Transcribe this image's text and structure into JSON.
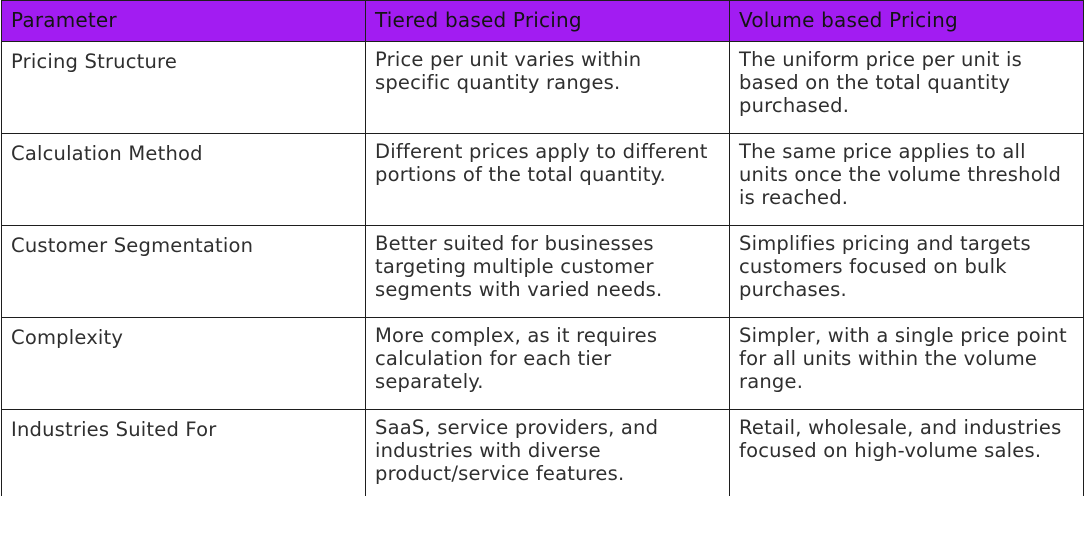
{
  "table": {
    "headers": [
      "Parameter",
      "Tiered based Pricing",
      "Volume based Pricing"
    ],
    "rows": [
      [
        "Pricing Structure",
        "Price per unit varies within specific quantity ranges.",
        "The uniform price per unit is based on the total quantity purchased."
      ],
      [
        "Calculation Method",
        "Different prices apply to different portions of the total quantity.",
        "The same price applies to all units once the volume threshold is reached."
      ],
      [
        "Customer Segmentation",
        "Better suited for businesses targeting multiple customer segments with varied needs.",
        "Simplifies pricing and targets customers focused on bulk purchases."
      ],
      [
        "Complexity",
        "More complex, as it requires calculation for each tier separately.",
        "Simpler, with a single price point for all units within the volume range."
      ],
      [
        "Industries Suited For",
        "SaaS, service providers, and industries with diverse product/service features.",
        "Retail, wholesale, and industries focused on high-volume sales."
      ]
    ]
  },
  "colors": {
    "header_background": "#a21cf2",
    "border": "#1e1e1e",
    "text": "#2f2f2f"
  }
}
